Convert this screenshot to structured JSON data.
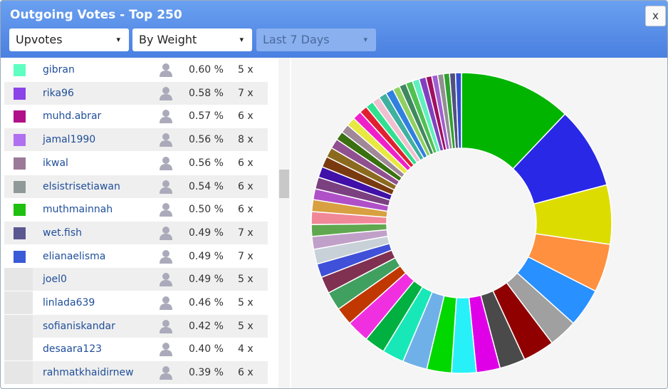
{
  "header": {
    "title": "Outgoing Votes - Top 250",
    "close": "x",
    "filters": [
      "Upvotes",
      "By Weight",
      "Last 7 Days"
    ]
  },
  "table": {
    "rows": [
      [
        "#5effc0",
        "gibran",
        "0.60 %",
        "5 x"
      ],
      [
        "#8a44e8",
        "rika96",
        "0.58 %",
        "7 x"
      ],
      [
        "#b0108a",
        "muhd.abrar",
        "0.57 %",
        "6 x"
      ],
      [
        "#b070f0",
        "jamal1990",
        "0.56 %",
        "8 x"
      ],
      [
        "#9a7a98",
        "ikwal",
        "0.56 %",
        "6 x"
      ],
      [
        "#8f9a98",
        "elsistrisetiawan",
        "0.54 %",
        "6 x"
      ],
      [
        "#20c010",
        "muthmainnah",
        "0.50 %",
        "6 x"
      ],
      [
        "#5a5890",
        "wet.fish",
        "0.49 %",
        "7 x"
      ],
      [
        "#3a5ad8",
        "elianaelisma",
        "0.49 %",
        "7 x"
      ],
      [
        null,
        "joel0",
        "0.49 %",
        "5 x"
      ],
      [
        null,
        "linlada639",
        "0.46 %",
        "5 x"
      ],
      [
        null,
        "sofianiskandar",
        "0.42 %",
        "5 x"
      ],
      [
        null,
        "desaara123",
        "0.40 %",
        "4 x"
      ],
      [
        null,
        "rahmatkhaidirnew",
        "0.39 %",
        "6 x"
      ]
    ]
  },
  "donut": {
    "segments": [
      {
        "color": "#00b400",
        "value": 11.4
      },
      {
        "color": "#2828e6",
        "value": 8.3
      },
      {
        "color": "#dcdc00",
        "value": 6
      },
      {
        "color": "#ff9040",
        "value": 4.9
      },
      {
        "color": "#2890ff",
        "value": 3.9
      },
      {
        "color": "#a0a0a0",
        "value": 2.9
      },
      {
        "color": "#900000",
        "value": 3.2
      },
      {
        "color": "#4a4a4a",
        "value": 2.6
      },
      {
        "color": "#e000e8",
        "value": 2.4
      },
      {
        "color": "#28f0f8",
        "value": 2.5
      },
      {
        "color": "#00d800",
        "value": 2.5
      },
      {
        "color": "#70b0e8",
        "value": 2.5
      },
      {
        "color": "#18e8b8",
        "value": 2.2
      },
      {
        "color": "#00b040",
        "value": 2.1
      },
      {
        "color": "#f030e0",
        "value": 2.3
      },
      {
        "color": "#c03800",
        "value": 1.8
      },
      {
        "color": "#40a060",
        "value": 1.9
      },
      {
        "color": "#803050",
        "value": 1.7
      },
      {
        "color": "#4050d8",
        "value": 1.4
      },
      {
        "color": "#c8d0d8",
        "value": 1.5
      },
      {
        "color": "#c0a0c8",
        "value": 1.3
      },
      {
        "color": "#60a850",
        "value": 1.2
      },
      {
        "color": "#f08898",
        "value": 1.3
      },
      {
        "color": "#d8a040",
        "value": 1.2
      },
      {
        "color": "#b050c8",
        "value": 1.1
      },
      {
        "color": "#7a4080",
        "value": 1.2
      },
      {
        "color": "#4010a8",
        "value": 1.1
      },
      {
        "color": "#7a3a10",
        "value": 1.1
      },
      {
        "color": "#8b6a20",
        "value": 1.0
      },
      {
        "color": "#905090",
        "value": 1.0
      },
      {
        "color": "#3a7010",
        "value": 0.9
      },
      {
        "color": "#a08898",
        "value": 0.9
      },
      {
        "color": "#e8e840",
        "value": 0.9
      },
      {
        "color": "#f020c8",
        "value": 0.9
      },
      {
        "color": "#e02030",
        "value": 0.8
      },
      {
        "color": "#30e090",
        "value": 0.8
      },
      {
        "color": "#f0c0d0",
        "value": 0.8
      },
      {
        "color": "#40b0a0",
        "value": 0.8
      },
      {
        "color": "#3080e0",
        "value": 0.8
      },
      {
        "color": "#90d060",
        "value": 0.7
      },
      {
        "color": "#408860",
        "value": 0.7
      },
      {
        "color": "#50c050",
        "value": 0.7
      },
      {
        "color": "#60f0c0",
        "value": 0.7
      },
      {
        "color": "#8040c0",
        "value": 0.7
      },
      {
        "color": "#a01060",
        "value": 0.6
      },
      {
        "color": "#a060d0",
        "value": 0.6
      },
      {
        "color": "#909090",
        "value": 0.6
      },
      {
        "color": "#30a030",
        "value": 0.6
      },
      {
        "color": "#505080",
        "value": 0.6
      },
      {
        "color": "#3050d0",
        "value": 0.6
      }
    ]
  }
}
